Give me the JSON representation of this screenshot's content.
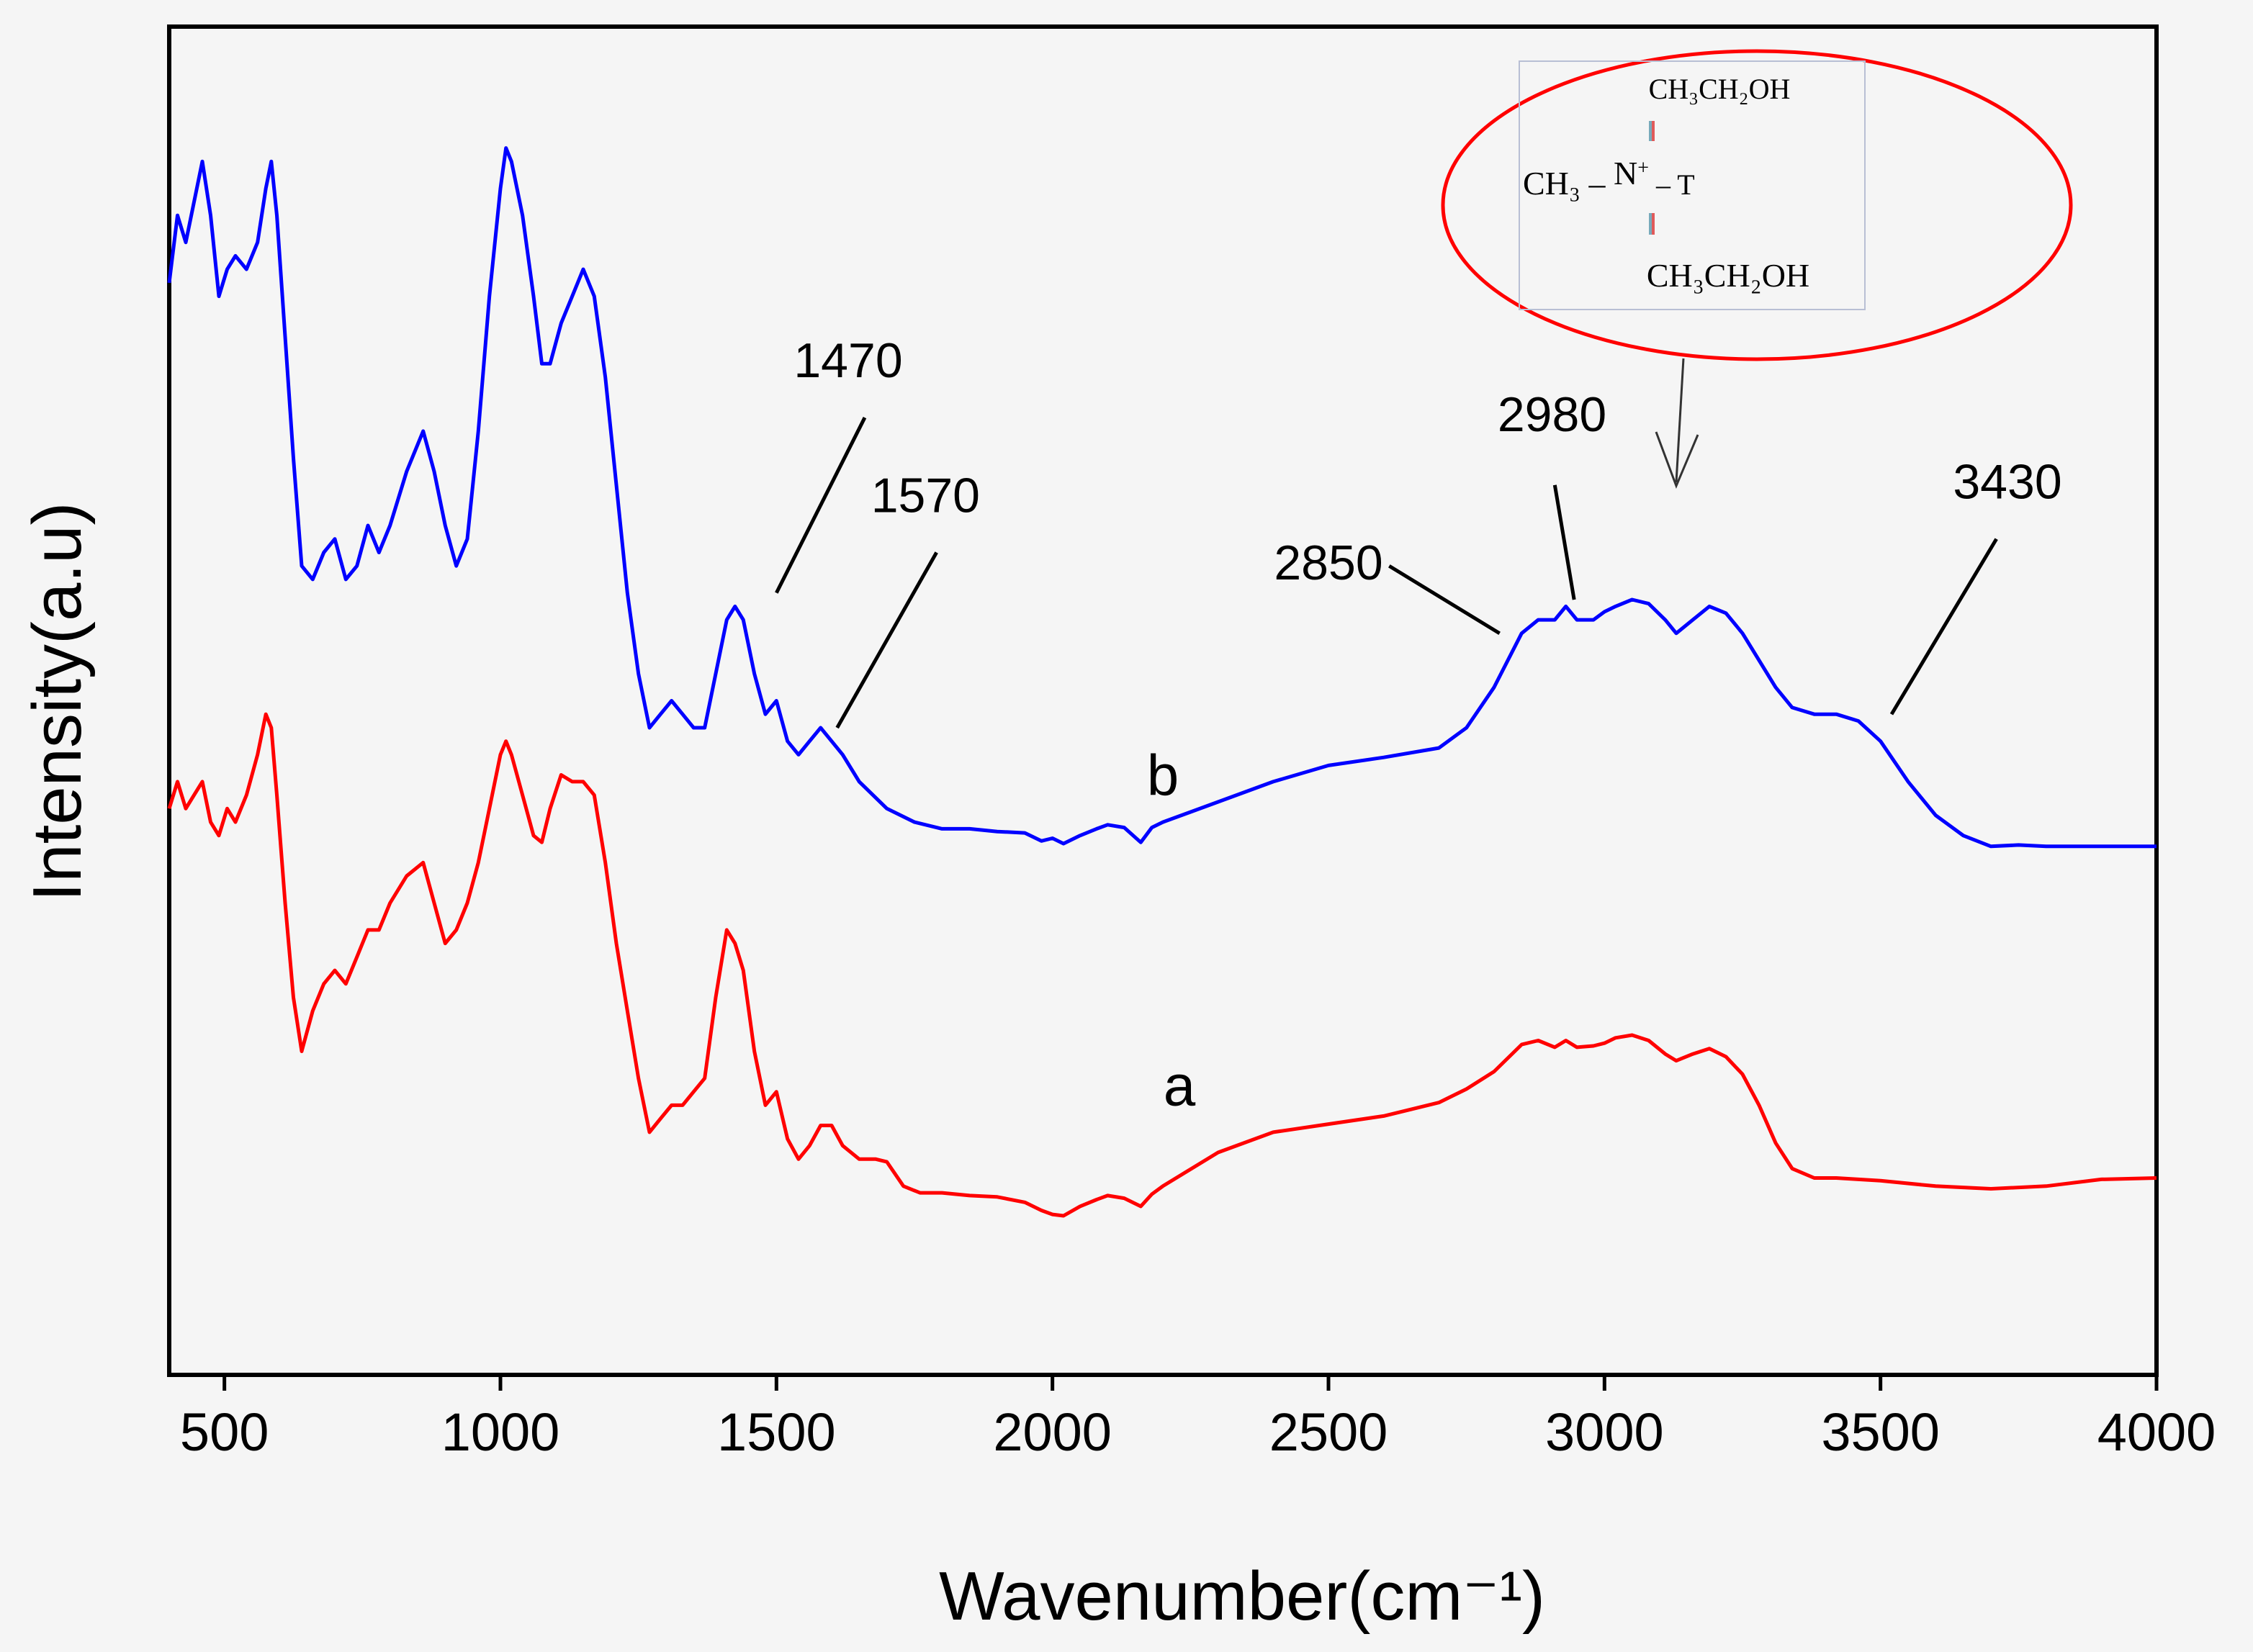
{
  "chart_data": {
    "type": "line",
    "title": "",
    "xlabel": "Wavenumber(cm⁻¹)",
    "ylabel": "Intensity(a.u)",
    "xlim": [
      400,
      4000
    ],
    "ylim": [
      0,
      100
    ],
    "xticks": [
      500,
      1000,
      1500,
      2000,
      2500,
      3000,
      3500,
      4000
    ],
    "grid": false,
    "series": [
      {
        "name": "b",
        "color": "#0000ff",
        "label_pos": [
          2200,
          43
        ],
        "points": [
          [
            400,
            81
          ],
          [
            415,
            86
          ],
          [
            430,
            84
          ],
          [
            445,
            87
          ],
          [
            460,
            90
          ],
          [
            475,
            86
          ],
          [
            490,
            80
          ],
          [
            505,
            82
          ],
          [
            520,
            83
          ],
          [
            540,
            82
          ],
          [
            560,
            84
          ],
          [
            575,
            88
          ],
          [
            585,
            90
          ],
          [
            595,
            86
          ],
          [
            610,
            77
          ],
          [
            625,
            68
          ],
          [
            640,
            60
          ],
          [
            660,
            59
          ],
          [
            680,
            61
          ],
          [
            700,
            62
          ],
          [
            720,
            59
          ],
          [
            740,
            60
          ],
          [
            760,
            63
          ],
          [
            780,
            61
          ],
          [
            800,
            63
          ],
          [
            830,
            67
          ],
          [
            860,
            70
          ],
          [
            880,
            67
          ],
          [
            900,
            63
          ],
          [
            920,
            60
          ],
          [
            940,
            62
          ],
          [
            960,
            70
          ],
          [
            980,
            80
          ],
          [
            1000,
            88
          ],
          [
            1010,
            91
          ],
          [
            1020,
            90
          ],
          [
            1040,
            86
          ],
          [
            1060,
            80
          ],
          [
            1075,
            75
          ],
          [
            1090,
            75
          ],
          [
            1110,
            78
          ],
          [
            1130,
            80
          ],
          [
            1150,
            82
          ],
          [
            1170,
            80
          ],
          [
            1190,
            74
          ],
          [
            1210,
            66
          ],
          [
            1230,
            58
          ],
          [
            1250,
            52
          ],
          [
            1270,
            48
          ],
          [
            1290,
            49
          ],
          [
            1310,
            50
          ],
          [
            1330,
            49
          ],
          [
            1350,
            48
          ],
          [
            1370,
            48
          ],
          [
            1390,
            52
          ],
          [
            1410,
            56
          ],
          [
            1425,
            57
          ],
          [
            1440,
            56
          ],
          [
            1460,
            52
          ],
          [
            1480,
            49
          ],
          [
            1500,
            50
          ],
          [
            1520,
            47
          ],
          [
            1540,
            46
          ],
          [
            1560,
            47
          ],
          [
            1580,
            48
          ],
          [
            1600,
            47
          ],
          [
            1620,
            46
          ],
          [
            1650,
            44
          ],
          [
            1700,
            42
          ],
          [
            1750,
            41
          ],
          [
            1800,
            40.5
          ],
          [
            1850,
            40.5
          ],
          [
            1900,
            40.3
          ],
          [
            1950,
            40.2
          ],
          [
            1980,
            39.6
          ],
          [
            2000,
            39.8
          ],
          [
            2020,
            39.4
          ],
          [
            2050,
            40
          ],
          [
            2080,
            40.5
          ],
          [
            2100,
            40.8
          ],
          [
            2130,
            40.6
          ],
          [
            2160,
            39.5
          ],
          [
            2180,
            40.6
          ],
          [
            2200,
            41
          ],
          [
            2300,
            42.5
          ],
          [
            2400,
            44
          ],
          [
            2500,
            45.2
          ],
          [
            2600,
            45.8
          ],
          [
            2700,
            46.5
          ],
          [
            2750,
            48
          ],
          [
            2800,
            51
          ],
          [
            2850,
            55
          ],
          [
            2880,
            56
          ],
          [
            2910,
            56
          ],
          [
            2930,
            57
          ],
          [
            2950,
            56
          ],
          [
            2980,
            56
          ],
          [
            3000,
            56.6
          ],
          [
            3020,
            57
          ],
          [
            3050,
            57.5
          ],
          [
            3080,
            57.2
          ],
          [
            3110,
            56
          ],
          [
            3130,
            55
          ],
          [
            3160,
            56
          ],
          [
            3190,
            57
          ],
          [
            3220,
            56.5
          ],
          [
            3250,
            55
          ],
          [
            3280,
            53
          ],
          [
            3310,
            51
          ],
          [
            3340,
            49.5
          ],
          [
            3380,
            49
          ],
          [
            3420,
            49
          ],
          [
            3460,
            48.5
          ],
          [
            3500,
            47
          ],
          [
            3550,
            44
          ],
          [
            3600,
            41.5
          ],
          [
            3650,
            40
          ],
          [
            3700,
            39.2
          ],
          [
            3750,
            39.3
          ],
          [
            3800,
            39.2
          ],
          [
            3900,
            39.2
          ],
          [
            4000,
            39.2
          ]
        ]
      },
      {
        "name": "a",
        "color": "#ff0000",
        "label_pos": [
          2230,
          20
        ],
        "points": [
          [
            400,
            42
          ],
          [
            415,
            44
          ],
          [
            430,
            42
          ],
          [
            445,
            43
          ],
          [
            460,
            44
          ],
          [
            475,
            41
          ],
          [
            490,
            40
          ],
          [
            505,
            42
          ],
          [
            520,
            41
          ],
          [
            540,
            43
          ],
          [
            560,
            46
          ],
          [
            575,
            49
          ],
          [
            585,
            48
          ],
          [
            595,
            43
          ],
          [
            610,
            35
          ],
          [
            625,
            28
          ],
          [
            640,
            24
          ],
          [
            660,
            27
          ],
          [
            680,
            29
          ],
          [
            700,
            30
          ],
          [
            720,
            29
          ],
          [
            740,
            31
          ],
          [
            760,
            33
          ],
          [
            780,
            33
          ],
          [
            800,
            35
          ],
          [
            830,
            37
          ],
          [
            860,
            38
          ],
          [
            880,
            35
          ],
          [
            900,
            32
          ],
          [
            920,
            33
          ],
          [
            940,
            35
          ],
          [
            960,
            38
          ],
          [
            980,
            42
          ],
          [
            1000,
            46
          ],
          [
            1010,
            47
          ],
          [
            1020,
            46
          ],
          [
            1040,
            43
          ],
          [
            1060,
            40
          ],
          [
            1075,
            39.5
          ],
          [
            1090,
            42
          ],
          [
            1110,
            44.5
          ],
          [
            1130,
            44
          ],
          [
            1150,
            44
          ],
          [
            1170,
            43
          ],
          [
            1190,
            38
          ],
          [
            1210,
            32
          ],
          [
            1230,
            27
          ],
          [
            1250,
            22
          ],
          [
            1270,
            18
          ],
          [
            1290,
            19
          ],
          [
            1310,
            20
          ],
          [
            1330,
            20
          ],
          [
            1350,
            21
          ],
          [
            1370,
            22
          ],
          [
            1390,
            28
          ],
          [
            1410,
            33
          ],
          [
            1425,
            32
          ],
          [
            1440,
            30
          ],
          [
            1460,
            24
          ],
          [
            1480,
            20
          ],
          [
            1500,
            21
          ],
          [
            1520,
            17.5
          ],
          [
            1540,
            16
          ],
          [
            1560,
            17
          ],
          [
            1580,
            18.5
          ],
          [
            1600,
            18.5
          ],
          [
            1620,
            17
          ],
          [
            1650,
            16
          ],
          [
            1680,
            16
          ],
          [
            1700,
            15.8
          ],
          [
            1730,
            14
          ],
          [
            1760,
            13.5
          ],
          [
            1800,
            13.5
          ],
          [
            1850,
            13.3
          ],
          [
            1900,
            13.2
          ],
          [
            1950,
            12.8
          ],
          [
            1980,
            12.2
          ],
          [
            2000,
            11.9
          ],
          [
            2020,
            11.8
          ],
          [
            2050,
            12.5
          ],
          [
            2080,
            13
          ],
          [
            2100,
            13.3
          ],
          [
            2130,
            13.1
          ],
          [
            2160,
            12.5
          ],
          [
            2180,
            13.4
          ],
          [
            2200,
            14
          ],
          [
            2300,
            16.5
          ],
          [
            2400,
            18
          ],
          [
            2500,
            18.6
          ],
          [
            2600,
            19.2
          ],
          [
            2700,
            20.2
          ],
          [
            2750,
            21.2
          ],
          [
            2800,
            22.5
          ],
          [
            2850,
            24.5
          ],
          [
            2880,
            24.8
          ],
          [
            2910,
            24.3
          ],
          [
            2930,
            24.8
          ],
          [
            2950,
            24.3
          ],
          [
            2980,
            24.4
          ],
          [
            3000,
            24.6
          ],
          [
            3020,
            25
          ],
          [
            3050,
            25.2
          ],
          [
            3080,
            24.8
          ],
          [
            3110,
            23.8
          ],
          [
            3130,
            23.3
          ],
          [
            3160,
            23.8
          ],
          [
            3190,
            24.2
          ],
          [
            3220,
            23.6
          ],
          [
            3250,
            22.3
          ],
          [
            3280,
            20
          ],
          [
            3310,
            17.2
          ],
          [
            3340,
            15.3
          ],
          [
            3380,
            14.6
          ],
          [
            3420,
            14.6
          ],
          [
            3500,
            14.4
          ],
          [
            3600,
            14
          ],
          [
            3700,
            13.8
          ],
          [
            3800,
            14
          ],
          [
            3900,
            14.5
          ],
          [
            4000,
            14.6
          ]
        ]
      }
    ],
    "annotations": [
      {
        "text": "1470",
        "x1": 1500,
        "y1": 58,
        "x2": 1660,
        "y2": 71,
        "tx": 1630,
        "ty": 74
      },
      {
        "text": "1570",
        "x1": 1610,
        "y1": 48,
        "x2": 1790,
        "y2": 61,
        "tx": 1770,
        "ty": 64
      },
      {
        "text": "2850",
        "x1": 2810,
        "y1": 55,
        "x2": 2610,
        "y2": 60,
        "tx": 2500,
        "ty": 59
      },
      {
        "text": "2980",
        "x1": 2945,
        "y1": 57.5,
        "x2": 2910,
        "y2": 66,
        "tx": 2905,
        "ty": 70
      },
      {
        "text": "3430",
        "x1": 3520,
        "y1": 49,
        "x2": 3710,
        "y2": 62,
        "tx": 3730,
        "ty": 65
      }
    ],
    "inset": {
      "top": "CH₃CH₂OH",
      "middle_left": "CH₃ – ",
      "middle_n": "N",
      "middle_charge": "+",
      "middle_right": " – T",
      "bottom": "CH₃CH₂OH",
      "color": "#ff0000"
    },
    "colors": {
      "axes": "#000000",
      "background": "#f5f5f5"
    }
  }
}
